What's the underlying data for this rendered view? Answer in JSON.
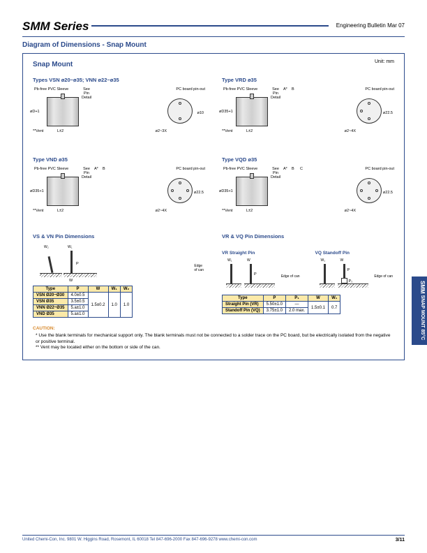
{
  "header": {
    "series_title": "SMM Series",
    "bulletin": "Engineering Bulletin Mar 07"
  },
  "section_title": "Diagram of Dimensions - Snap Mount",
  "snap_mount_title": "Snap Mount",
  "unit": "Unit: mm",
  "types": {
    "vsn_vnn": "Types VSN ø20~ø35; VNN ø22~ø35",
    "vrd": "Type VRD ø35",
    "vnd": "Type VND ø35",
    "vqd": "Type VQD ø35"
  },
  "diagram_labels": {
    "sleeve": "Pb-free PVC Sleeve",
    "pin_detail": "See\nPin\nDetail",
    "pcb_pinout": "PC board pin-out",
    "d_label": "øD+1",
    "d35_label": "øD35+1",
    "vent": "**Vent",
    "l_label": "L±2",
    "phi_label": "ø2~3X",
    "phi_label_4x": "ø2~4X",
    "diam_10": "ø10",
    "diam_225": "ø22.5",
    "a_star": "A*",
    "b": "B",
    "c": "C"
  },
  "pin_dims": {
    "left_title": "VS & VN Pin Dimensions",
    "right_title": "VR & VQ Pin Dimensions",
    "vr_straight": "VR Straight Pin",
    "vq_standoff": "VQ Standoff Pin",
    "edge_label": "Edge\nof can",
    "w_labels": {
      "w2": "W₂",
      "w1": "W₁",
      "w": "W",
      "p": "P",
      "p1": "P₁"
    },
    "left_table": {
      "headers": [
        "Type",
        "P",
        "W",
        "W₁",
        "W₂"
      ],
      "rows": [
        [
          "VSN  Ø20~Ø30",
          "4.0±0.5",
          "1.5±0.2",
          "1.0",
          "1.0"
        ],
        [
          "VSN  Ø35",
          "3.5±0.5",
          "",
          "",
          ""
        ],
        [
          "VNN  Ø22~Ø35",
          "5.a±1.0",
          "",
          "",
          ""
        ],
        [
          "VND  Ø35",
          "5.a±1.0",
          "",
          "",
          ""
        ]
      ]
    },
    "right_table": {
      "headers": [
        "Type",
        "P",
        "P₁",
        "W",
        "W₁"
      ],
      "rows": [
        [
          "Straight Pin (VR)",
          "5.50±1.0",
          "—",
          "1.5±0.1",
          "0.7"
        ],
        [
          "Standoff Pin (VQ)",
          "3.75±1.0",
          "2.0 max.",
          "",
          ""
        ]
      ]
    }
  },
  "caution": {
    "title": "CAUTION:",
    "text1": "* Use the blank terminals for mechanical support only. The blank terminals must not be connected to a solder trace on the PC board, but be electrically isolated from the negative or positive terminal.",
    "text2": "** Vent may be located either on the bottom or side of the can."
  },
  "footer": {
    "text": "United Chemi-Con, Inc. 9801 W. Higgins Road, Rosemont, IL 60018  Tel 847-696-2000  Fax 847-696-9278  www.chemi-con.com",
    "page": "3/11"
  },
  "side_tab": {
    "line1": "SMM",
    "line2": "SNAP MOUNT  85°C"
  },
  "colors": {
    "brand_blue": "#2b4a8b",
    "table_header_bg": "#fbe9a8",
    "caution_color": "#d88a2e"
  }
}
